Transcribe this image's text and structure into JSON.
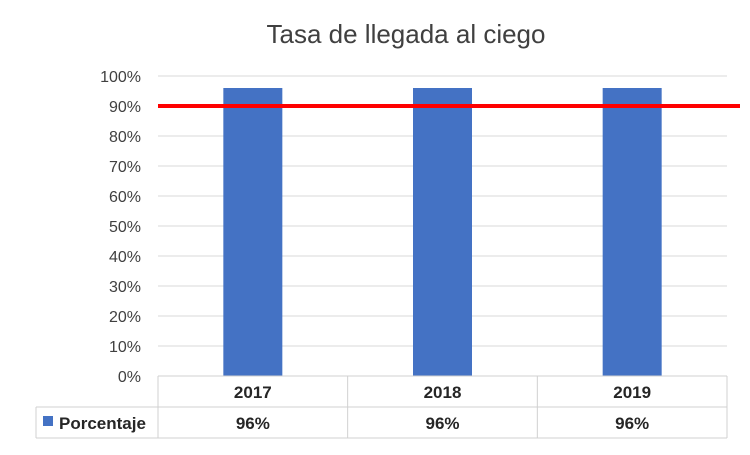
{
  "chart_data": {
    "type": "bar",
    "title": "Tasa de llegada al ciego",
    "xlabel": "",
    "ylabel": "",
    "categories": [
      "2017",
      "2018",
      "2019"
    ],
    "series": [
      {
        "name": "Porcentaje",
        "values": [
          96,
          96,
          96
        ],
        "labels": [
          "96%",
          "96%",
          "96%"
        ]
      }
    ],
    "ylim": [
      0,
      100
    ],
    "yticks": [
      "0%",
      "10%",
      "20%",
      "30%",
      "40%",
      "50%",
      "60%",
      "70%",
      "80%",
      "90%",
      "100%"
    ],
    "reference_line": {
      "value": 90
    },
    "grid": true,
    "legend": "data-table-left",
    "colors": {
      "bar": "#4472c4",
      "reference_line": "#ff0000",
      "grid": "#d9d9d9"
    }
  }
}
